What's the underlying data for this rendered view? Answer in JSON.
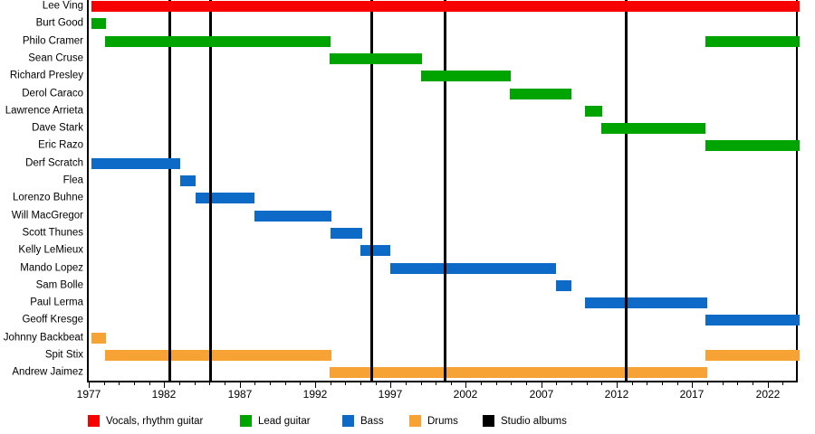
{
  "chart_data": {
    "type": "gantt-timeline",
    "x_axis": {
      "min": 1977,
      "max": 2024,
      "major_ticks": [
        1977,
        1982,
        1987,
        1992,
        1997,
        2002,
        2007,
        2012,
        2017,
        2022
      ],
      "minor_tick_interval": 1
    },
    "roles": [
      {
        "id": "vocals",
        "label": "Vocals, rhythm guitar",
        "color": "#f70000"
      },
      {
        "id": "lead",
        "label": "Lead guitar",
        "color": "#00a400"
      },
      {
        "id": "bass",
        "label": "Bass",
        "color": "#0d6bc7"
      },
      {
        "id": "drums",
        "label": "Drums",
        "color": "#f7a235"
      },
      {
        "id": "albums",
        "label": "Studio albums",
        "color": "#000000"
      }
    ],
    "members": [
      {
        "name": "Lee Ving",
        "role": "vocals",
        "spans": [
          [
            1977.2,
            2024
          ]
        ]
      },
      {
        "name": "Burt Good",
        "role": "lead",
        "spans": [
          [
            1977.2,
            1978.15
          ]
        ]
      },
      {
        "name": "Philo Cramer",
        "role": "lead",
        "spans": [
          [
            1978.1,
            1993.05
          ],
          [
            2017.9,
            2024
          ]
        ]
      },
      {
        "name": "Sean Cruse",
        "role": "lead",
        "spans": [
          [
            1992.95,
            1999.1
          ]
        ]
      },
      {
        "name": "Richard Presley",
        "role": "lead",
        "spans": [
          [
            1999.0,
            2005.0
          ]
        ]
      },
      {
        "name": "Derol Caraco",
        "role": "lead",
        "spans": [
          [
            2004.9,
            2009.0
          ]
        ]
      },
      {
        "name": "Lawrence Arrieta",
        "role": "lead",
        "spans": [
          [
            2009.9,
            2011.05
          ]
        ]
      },
      {
        "name": "Dave Stark",
        "role": "lead",
        "spans": [
          [
            2011.0,
            2017.9
          ]
        ]
      },
      {
        "name": "Eric Razo",
        "role": "lead",
        "spans": [
          [
            2017.9,
            2024
          ]
        ]
      },
      {
        "name": "Derf Scratch",
        "role": "bass",
        "spans": [
          [
            1977.2,
            1983.05
          ]
        ]
      },
      {
        "name": "Flea",
        "role": "bass",
        "spans": [
          [
            1983.05,
            1984.1
          ]
        ]
      },
      {
        "name": "Lorenzo Buhne",
        "role": "bass",
        "spans": [
          [
            1984.1,
            1988.0
          ]
        ]
      },
      {
        "name": "Will MacGregor",
        "role": "bass",
        "spans": [
          [
            1988.0,
            1993.1
          ]
        ]
      },
      {
        "name": "Scott Thunes",
        "role": "bass",
        "spans": [
          [
            1993.0,
            1995.1
          ]
        ]
      },
      {
        "name": "Kelly LeMieux",
        "role": "bass",
        "spans": [
          [
            1995.0,
            1997.0
          ]
        ]
      },
      {
        "name": "Mando Lopez",
        "role": "bass",
        "spans": [
          [
            1997.0,
            2008.0
          ]
        ]
      },
      {
        "name": "Sam Bolle",
        "role": "bass",
        "spans": [
          [
            2008.0,
            2009.0
          ]
        ]
      },
      {
        "name": "Paul Lerma",
        "role": "bass",
        "spans": [
          [
            2009.9,
            2018.0
          ]
        ]
      },
      {
        "name": "Geoff Kresge",
        "role": "bass",
        "spans": [
          [
            2017.9,
            2024
          ]
        ]
      },
      {
        "name": "Johnny Backbeat",
        "role": "drums",
        "spans": [
          [
            1977.2,
            1978.15
          ]
        ]
      },
      {
        "name": "Spit Stix",
        "role": "drums",
        "spans": [
          [
            1978.1,
            1993.1
          ],
          [
            2017.9,
            2024
          ]
        ]
      },
      {
        "name": "Andrew Jaimez",
        "role": "drums",
        "spans": [
          [
            1992.95,
            2018.0
          ]
        ]
      }
    ],
    "album_lines": [
      1982.4,
      1985.1,
      1995.75,
      2000.6,
      2012.6
    ],
    "legend": [
      "Vocals, rhythm guitar",
      "Lead guitar",
      "Bass",
      "Drums",
      "Studio albums"
    ]
  }
}
